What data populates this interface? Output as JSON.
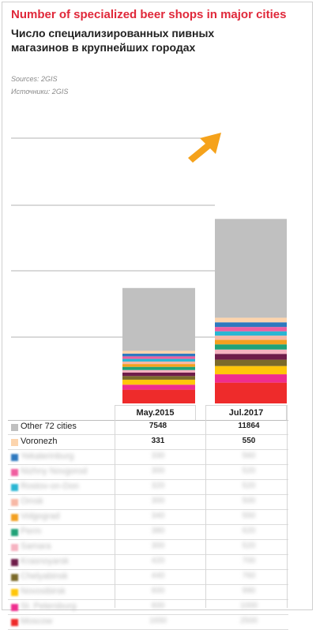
{
  "title_en": "Number of specialized beer shops in major cities",
  "title_ru": "Число специализированных пивных магазинов в крупнейших городах",
  "sources_en": "Sources: 2GIS",
  "sources_ru": "Источники: 2GIS",
  "colors": {
    "title": "#e0283a",
    "arrow": "#f5a21b",
    "gridline": "#9a9a9a"
  },
  "chart_data": {
    "type": "bar",
    "stacked": true,
    "categories": [
      "May.2015",
      "Jul.2017"
    ],
    "legend_placement": "table-below",
    "series": [
      {
        "name": "Other 72 cities",
        "color": "#c0c0c0",
        "values": [
          7548,
          11864
        ]
      },
      {
        "name": "Voronezh",
        "color": "#fcd4ad",
        "values": [
          331,
          550
        ]
      },
      {
        "name": "",
        "color": "#2f79bf",
        "values": [
          330,
          560
        ]
      },
      {
        "name": "",
        "color": "#f05ea0",
        "values": [
          300,
          520
        ]
      },
      {
        "name": "",
        "color": "#2ab6d3",
        "values": [
          320,
          520
        ]
      },
      {
        "name": "",
        "color": "#f7b8a5",
        "values": [
          300,
          500
        ]
      },
      {
        "name": "",
        "color": "#f3a020",
        "values": [
          340,
          550
        ]
      },
      {
        "name": "",
        "color": "#20a278",
        "values": [
          380,
          620
        ]
      },
      {
        "name": "",
        "color": "#f6b3c1",
        "values": [
          300,
          520
        ]
      },
      {
        "name": "",
        "color": "#6f1d4a",
        "values": [
          420,
          700
        ]
      },
      {
        "name": "",
        "color": "#7b6a2a",
        "values": [
          440,
          760
        ]
      },
      {
        "name": "",
        "color": "#ffc60a",
        "values": [
          600,
          990
        ]
      },
      {
        "name": "",
        "color": "#ef2d8e",
        "values": [
          600,
          1000
        ]
      },
      {
        "name": "",
        "color": "#ee2b2b",
        "values": [
          1650,
          2500
        ]
      }
    ]
  },
  "table": {
    "col_headers": [
      "May.2015",
      "Jul.2017"
    ],
    "rows": [
      {
        "name": "Other 72 cities",
        "color": "#c0c0c0",
        "v1": "7548",
        "v2": "11864",
        "blurred": false
      },
      {
        "name": "Voronezh",
        "color": "#fcd4ad",
        "v1": "331",
        "v2": "550",
        "blurred": false
      },
      {
        "name": "Yekaterinburg",
        "color": "#2f79bf",
        "v1": "330",
        "v2": "560",
        "blurred": true
      },
      {
        "name": "Nizhny Novgorod",
        "color": "#f05ea0",
        "v1": "300",
        "v2": "520",
        "blurred": true
      },
      {
        "name": "Rostov-on-Don",
        "color": "#2ab6d3",
        "v1": "320",
        "v2": "520",
        "blurred": true
      },
      {
        "name": "Omsk",
        "color": "#f7b8a5",
        "v1": "300",
        "v2": "500",
        "blurred": true
      },
      {
        "name": "Volgograd",
        "color": "#f3a020",
        "v1": "340",
        "v2": "550",
        "blurred": true
      },
      {
        "name": "Perm",
        "color": "#20a278",
        "v1": "380",
        "v2": "620",
        "blurred": true
      },
      {
        "name": "Samara",
        "color": "#f6b3c1",
        "v1": "300",
        "v2": "520",
        "blurred": true
      },
      {
        "name": "Krasnoyarsk",
        "color": "#6f1d4a",
        "v1": "420",
        "v2": "700",
        "blurred": true
      },
      {
        "name": "Chelyabinsk",
        "color": "#7b6a2a",
        "v1": "440",
        "v2": "760",
        "blurred": true
      },
      {
        "name": "Novosibirsk",
        "color": "#ffc60a",
        "v1": "600",
        "v2": "990",
        "blurred": true
      },
      {
        "name": "St. Petersburg",
        "color": "#ef2d8e",
        "v1": "600",
        "v2": "1000",
        "blurred": true
      },
      {
        "name": "Moscow",
        "color": "#ee2b2b",
        "v1": "1650",
        "v2": "2500",
        "blurred": true
      }
    ]
  }
}
